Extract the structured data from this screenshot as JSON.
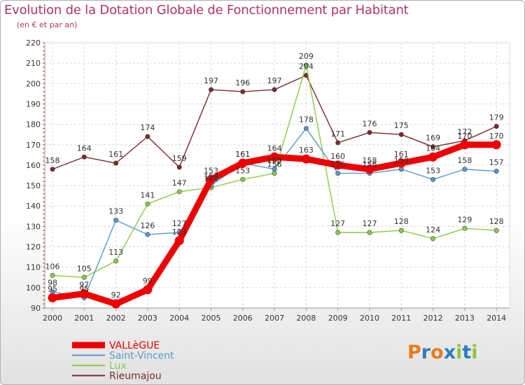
{
  "chart_data": {
    "type": "line",
    "title": "Evolution de la Dotation Globale de Fonctionnement par Habitant",
    "subtitle": "(en € et par an)",
    "xlabel": "",
    "ylabel": "",
    "ylim": [
      90,
      220
    ],
    "yticks": [
      90,
      100,
      110,
      120,
      130,
      140,
      150,
      160,
      170,
      180,
      190,
      200,
      210,
      220
    ],
    "x": [
      2000,
      2001,
      2002,
      2003,
      2004,
      2005,
      2006,
      2007,
      2008,
      2009,
      2010,
      2011,
      2012,
      2013,
      2014
    ],
    "grid": true,
    "legend_position": "bottom-left",
    "series": [
      {
        "name": "Rieumajou",
        "color": "#7a2a2a",
        "values": [
          158,
          164,
          161,
          174,
          159,
          197,
          196,
          197,
          204,
          171,
          176,
          175,
          169,
          172,
          179
        ]
      },
      {
        "name": "Lux",
        "color": "#88cc44",
        "values": [
          106,
          105,
          113,
          141,
          147,
          149,
          153,
          156,
          209,
          127,
          127,
          128,
          124,
          129,
          128
        ]
      },
      {
        "name": "Saint-Vincent",
        "color": "#5599cc",
        "values": [
          98,
          95,
          133,
          126,
          127,
          150,
          161,
          158,
          178,
          156,
          156,
          158,
          153,
          158,
          157
        ]
      },
      {
        "name": "VALLèGUE",
        "color": "#ee0000",
        "values": [
          95,
          97,
          92,
          99,
          123,
          153,
          161,
          164,
          163,
          160,
          158,
          161,
          164,
          170,
          170
        ]
      }
    ],
    "data_labels": [
      {
        "series": "Rieumajou",
        "labels": [
          "158",
          "164",
          "161",
          "174",
          "159",
          "197",
          "196",
          "197",
          "204",
          "171",
          "176",
          "175",
          "169",
          "172",
          "179"
        ]
      },
      {
        "series": "Lux",
        "labels": [
          "106",
          "105",
          "113",
          "141",
          "147",
          "149",
          "153",
          "156",
          "209",
          "127",
          "127",
          "128",
          "124",
          "129",
          "128"
        ]
      },
      {
        "series": "Saint-Vincent",
        "labels": [
          "98",
          "95",
          "133",
          "126",
          "127",
          "150",
          "161",
          "158",
          "178",
          "156",
          "156",
          "158",
          "153",
          "158",
          "157"
        ]
      },
      {
        "series": "VALLèGUE",
        "labels": [
          "95",
          "97",
          "92",
          "99",
          "123",
          "153",
          "161",
          "164",
          "163",
          "160",
          "158",
          "161",
          "164",
          "170",
          "170"
        ]
      }
    ]
  },
  "legend": [
    {
      "label": "VALLèGUE",
      "color": "#ee0000"
    },
    {
      "label": "Saint-Vincent",
      "color": "#5599cc"
    },
    {
      "label": "Lux",
      "color": "#88cc44"
    },
    {
      "label": "Rieumajou",
      "color": "#7a2a2a"
    }
  ],
  "logo": {
    "text": "Proxiti",
    "letters": [
      "P",
      "r",
      "o",
      "x",
      "i",
      "t",
      "i"
    ],
    "colors": [
      "#e87c1c",
      "#2a7fc4",
      "#e87c1c",
      "#2a7fc4",
      "#8cc43c",
      "#2a7fc4",
      "#8cc43c"
    ]
  }
}
